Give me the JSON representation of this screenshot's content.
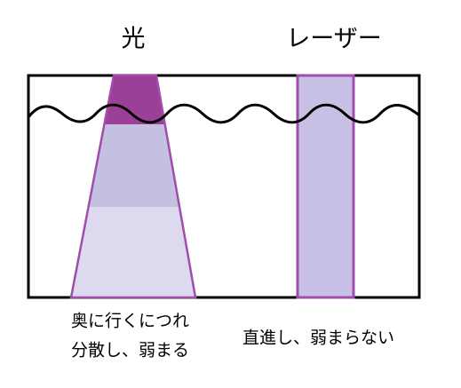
{
  "labels": {
    "light": "光",
    "laser": "レーザー"
  },
  "captions": {
    "light": [
      "奥に行くにつれ",
      "分散し、弱まる"
    ],
    "laser": "直進し、弱まらない"
  }
}
